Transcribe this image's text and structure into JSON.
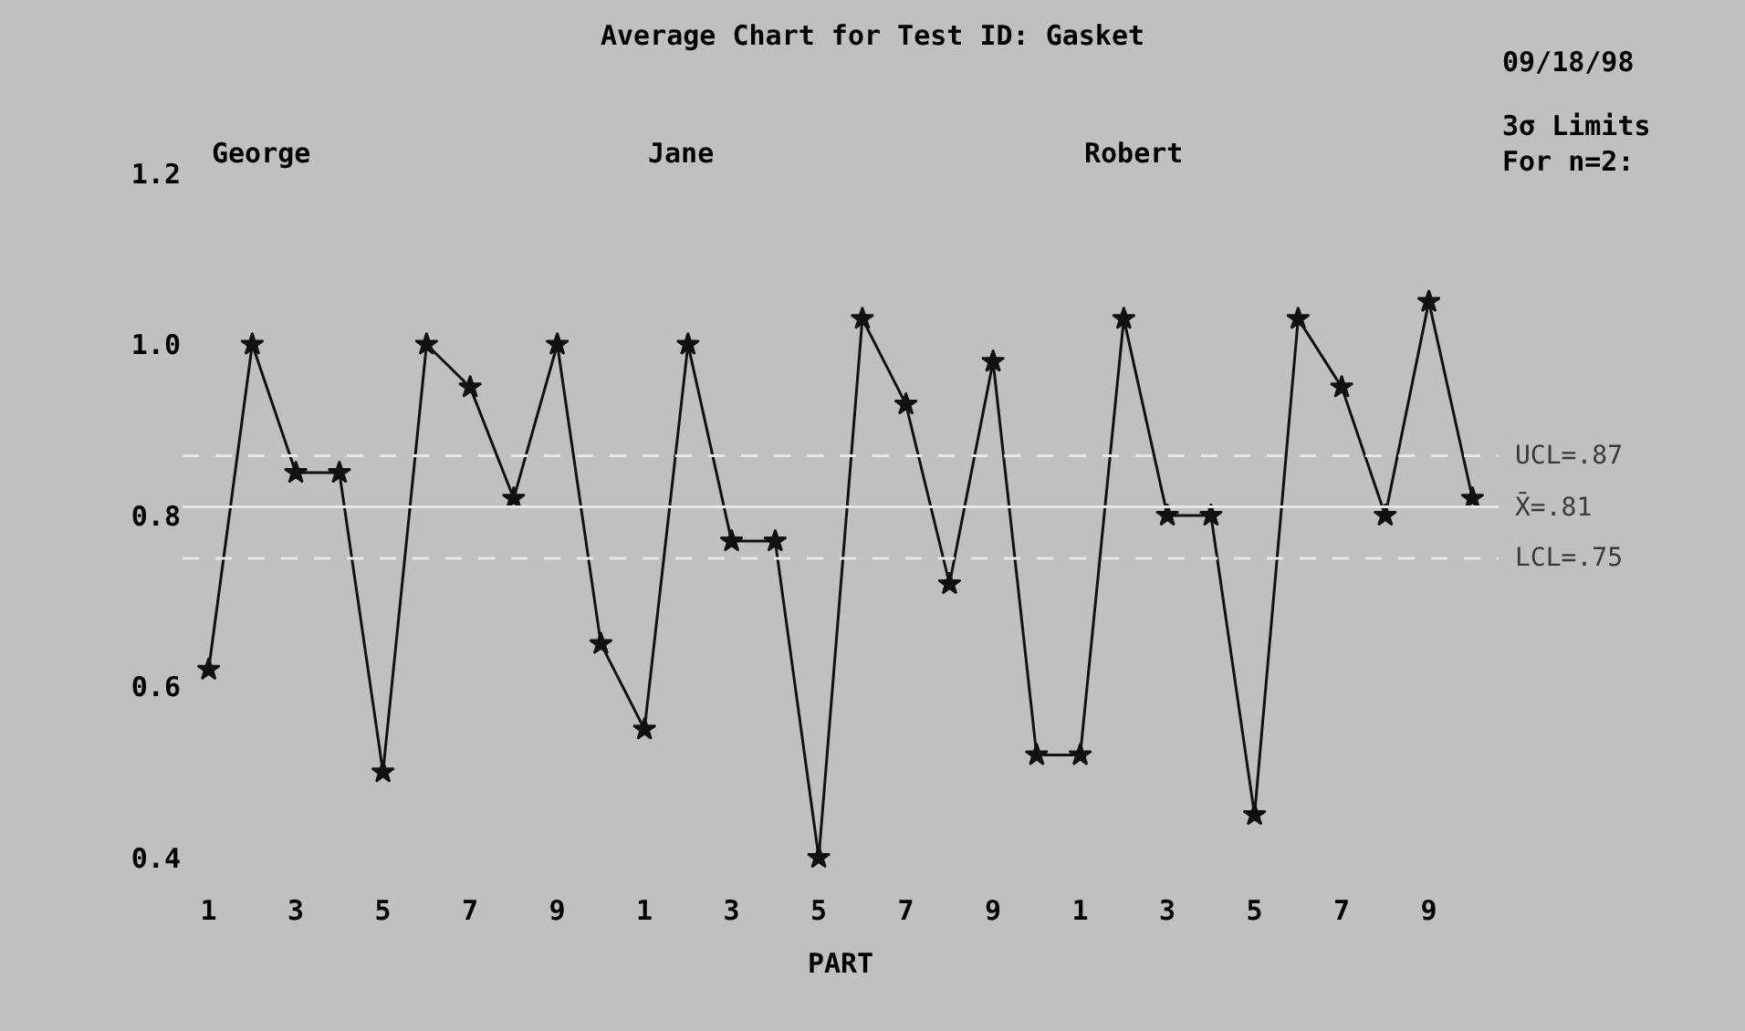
{
  "chart_data": {
    "type": "line",
    "title": "Average Chart for Test ID: Gasket",
    "xlabel": "PART",
    "categories": [
      "1",
      null,
      "3",
      null,
      "5",
      null,
      "7",
      null,
      "9",
      null,
      "1",
      null,
      "3",
      null,
      "5",
      null,
      "7",
      null,
      "9",
      null,
      "1",
      null,
      "3",
      null,
      "5",
      null,
      "7",
      null,
      "9",
      null
    ],
    "series": [
      {
        "color": "#111111",
        "values": [
          0.62,
          1.0,
          0.85,
          0.85,
          0.5,
          1.0,
          0.95,
          0.82,
          1.0,
          0.65,
          0.55,
          1.0,
          0.77,
          0.77,
          0.4,
          1.03,
          0.93,
          0.72,
          0.98,
          0.52,
          0.52,
          1.03,
          0.8,
          0.8,
          0.45,
          1.03,
          0.95,
          0.8,
          1.05,
          0.82
        ]
      }
    ],
    "marker": "star",
    "line_style": "solid",
    "grid": false,
    "legend": false,
    "ylim": [
      0.4,
      1.2
    ],
    "yticks": [
      {
        "value": 0.4,
        "label": "0.4"
      },
      {
        "value": 0.6,
        "label": "0.6"
      },
      {
        "value": 0.8,
        "label": "0.8"
      },
      {
        "value": 1,
        "label": "1.0"
      },
      {
        "value": 1.2,
        "label": "1.2"
      }
    ],
    "ref_lines": [
      {
        "axis": "y",
        "value": 0.87,
        "label": "UCL=.87",
        "color": "#e8e8e8",
        "line_style": "dashed"
      },
      {
        "axis": "y",
        "value": 0.81,
        "label": "X̄=.81",
        "color": "#e8e8e8",
        "line_style": "solid"
      },
      {
        "axis": "y",
        "value": 0.75,
        "label": "LCL=.75",
        "color": "#e8e8e8",
        "line_style": "dashed"
      }
    ],
    "annotations": [
      "09/18/98",
      "3σ Limits\nFor n=2:",
      "George",
      "Jane",
      "Robert"
    ]
  }
}
